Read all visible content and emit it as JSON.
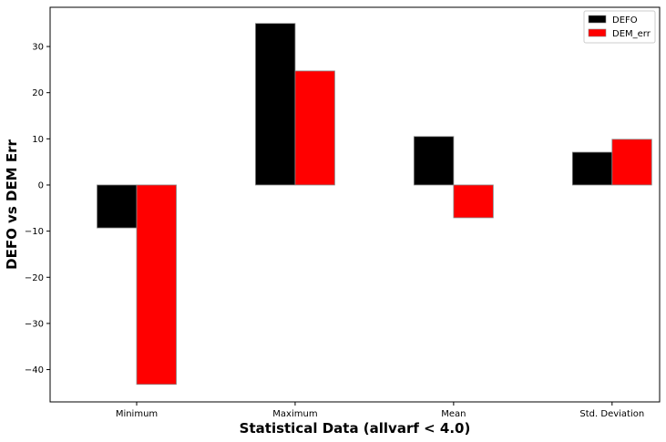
{
  "chart_data": {
    "type": "bar",
    "categories": [
      "Minimum",
      "Maximum",
      "Mean",
      "Std. Deviation"
    ],
    "series": [
      {
        "name": "DEFO",
        "values": [
          -9.3,
          35.0,
          10.5,
          7.1
        ],
        "color": "#000000"
      },
      {
        "name": "DEM_err",
        "values": [
          -43.2,
          24.7,
          -7.1,
          9.9
        ],
        "color": "#ff0000"
      }
    ],
    "title": "",
    "xlabel": "Statistical Data (allvarf < 4.0)",
    "ylabel": "DEFO vs DEM Err",
    "ylim": [
      -47,
      38.5
    ],
    "yticks": [
      30,
      20,
      10,
      0,
      -10,
      -20,
      -30,
      -40
    ],
    "ytick_labels": [
      "30",
      "20",
      "10",
      "0",
      "−10",
      "−20",
      "−30",
      "−40"
    ],
    "grid": false,
    "legend_position": "top-right",
    "bar_edge_color": "#888888"
  }
}
